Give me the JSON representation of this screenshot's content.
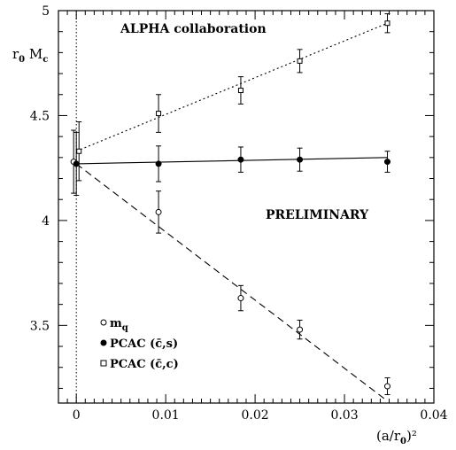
{
  "chart_data": {
    "type": "scatter",
    "title": "ALPHA collaboration",
    "annotation": "PRELIMINARY",
    "ylabel": {
      "main": "r",
      "sub1": "0",
      "mid": " M",
      "sub2": "c"
    },
    "xlabel": {
      "pre": "(a/r",
      "sub": "0",
      "post": ")²"
    },
    "xlim": [
      -0.002,
      0.04
    ],
    "ylim": [
      3.13,
      5.0
    ],
    "xticks": [
      0,
      0.01,
      0.02,
      0.03,
      0.04
    ],
    "xtick_labels": [
      "0",
      "0.01",
      "0.02",
      "0.03",
      "0.04"
    ],
    "yticks": [
      3.5,
      4,
      4.5,
      5
    ],
    "ytick_labels": [
      "3.5",
      "4",
      "4.5",
      "5"
    ],
    "vertical_reference_x": 0,
    "series": [
      {
        "name": "m_q",
        "marker": "open-circle",
        "line": "dashed",
        "fit": {
          "x": [
            0,
            0.0348
          ],
          "y": [
            4.27,
            3.14
          ]
        },
        "points": [
          {
            "x": -0.0003,
            "y": 4.28,
            "err": 0.15
          },
          {
            "x": 0.0092,
            "y": 4.04,
            "err": 0.1
          },
          {
            "x": 0.0184,
            "y": 3.63,
            "err": 0.06
          },
          {
            "x": 0.025,
            "y": 3.48,
            "err": 0.045
          },
          {
            "x": 0.0348,
            "y": 3.21,
            "err": 0.04
          }
        ]
      },
      {
        "name": "PCAC (c̄,s)",
        "marker": "filled-circle",
        "line": "solid",
        "fit": {
          "x": [
            0,
            0.0348
          ],
          "y": [
            4.27,
            4.3
          ]
        },
        "points": [
          {
            "x": 0,
            "y": 4.27,
            "err": 0.15
          },
          {
            "x": 0.0092,
            "y": 4.27,
            "err": 0.085
          },
          {
            "x": 0.0184,
            "y": 4.29,
            "err": 0.06
          },
          {
            "x": 0.025,
            "y": 4.29,
            "err": 0.055
          },
          {
            "x": 0.0348,
            "y": 4.28,
            "err": 0.05
          }
        ]
      },
      {
        "name": "PCAC (c̄,c)",
        "marker": "open-square",
        "line": "dotted",
        "fit": {
          "x": [
            0,
            0.0348
          ],
          "y": [
            4.33,
            4.94
          ]
        },
        "points": [
          {
            "x": 0.0003,
            "y": 4.33,
            "err": 0.14
          },
          {
            "x": 0.0092,
            "y": 4.51,
            "err": 0.09
          },
          {
            "x": 0.0184,
            "y": 4.62,
            "err": 0.065
          },
          {
            "x": 0.025,
            "y": 4.76,
            "err": 0.055
          },
          {
            "x": 0.0348,
            "y": 4.94,
            "err": 0.045
          }
        ]
      }
    ],
    "legend": {
      "placement": "bottom-left",
      "entries": [
        {
          "marker": "open-circle",
          "label": "m",
          "sub": "q"
        },
        {
          "marker": "filled-circle",
          "label": "PCAC (c̄,s)"
        },
        {
          "marker": "open-square",
          "label": "PCAC (c̄,c)"
        }
      ]
    }
  }
}
